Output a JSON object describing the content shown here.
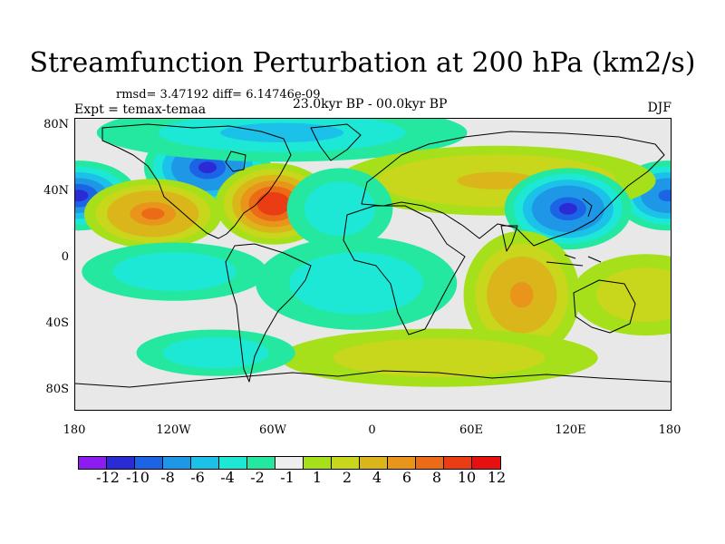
{
  "title": "Streamfunction Perturbation at 200 hPa (km2/s)",
  "stats": "rmsd= 3.47192 diff= 6.14746e-09",
  "experiment": "Expt = temax-temaa",
  "period": "23.0kyr BP - 00.0kyr BP",
  "season": "DJF",
  "map": {
    "lat_labels": [
      "80N",
      "40N",
      "0",
      "40S",
      "80S"
    ],
    "lon_labels": [
      "180",
      "120W",
      "60W",
      "0",
      "60E",
      "120E",
      "180"
    ]
  },
  "colorbar": {
    "colors": [
      "#8c1cf2",
      "#2b2bd6",
      "#1d63e6",
      "#1e98e6",
      "#1cc1e9",
      "#1de8d6",
      "#24e8a0",
      "#eeeeee",
      "#a6e01a",
      "#c8d61c",
      "#dbb61b",
      "#e9941a",
      "#eb6b17",
      "#ea3d14",
      "#e61010"
    ],
    "labels": [
      "-12",
      "-10",
      "-8",
      "-6",
      "-4",
      "-2",
      "-1",
      "1",
      "2",
      "4",
      "6",
      "8",
      "10",
      "12"
    ]
  },
  "features": [
    {
      "name": "pacific-low-west",
      "lon": -178,
      "lat": 38,
      "value": -10,
      "rx": 22,
      "ry": 12
    },
    {
      "name": "pacific-low-east",
      "lon": 178,
      "lat": 38,
      "value": -9,
      "rx": 20,
      "ry": 12
    },
    {
      "name": "north-america-low",
      "lon": -100,
      "lat": 55,
      "value": -11,
      "rx": 24,
      "ry": 14
    },
    {
      "name": "east-pacific-high",
      "lon": -133,
      "lat": 27,
      "value": 9,
      "rx": 26,
      "ry": 12
    },
    {
      "name": "atlantic-high",
      "lon": -60,
      "lat": 33,
      "value": 12,
      "rx": 22,
      "ry": 14
    },
    {
      "name": "arctic-low",
      "lon": -55,
      "lat": 76,
      "value": -4,
      "rx": 70,
      "ry": 10
    },
    {
      "name": "eurasia-high",
      "lon": 75,
      "lat": 47,
      "value": 5,
      "rx": 60,
      "ry": 12
    },
    {
      "name": "east-asia-low",
      "lon": 118,
      "lat": 30,
      "value": -11,
      "rx": 24,
      "ry": 14
    },
    {
      "name": "mid-atlantic-low",
      "lon": -20,
      "lat": 30,
      "value": -3,
      "rx": 20,
      "ry": 14
    },
    {
      "name": "indian-ocean-high",
      "lon": 90,
      "lat": -22,
      "value": 7,
      "rx": 22,
      "ry": 22
    },
    {
      "name": "south-pacific-low",
      "lon": -120,
      "lat": -8,
      "value": -3,
      "rx": 35,
      "ry": 10
    },
    {
      "name": "south-atlantic-low",
      "lon": -10,
      "lat": -15,
      "value": -3,
      "rx": 38,
      "ry": 16
    },
    {
      "name": "south-pacific-high",
      "lon": 165,
      "lat": -22,
      "value": 3,
      "rx": 28,
      "ry": 14
    },
    {
      "name": "southern-ocean-high",
      "lon": 40,
      "lat": -60,
      "value": 4,
      "rx": 60,
      "ry": 10
    },
    {
      "name": "southern-ocean-low",
      "lon": -95,
      "lat": -57,
      "value": -3,
      "rx": 30,
      "ry": 8
    }
  ]
}
